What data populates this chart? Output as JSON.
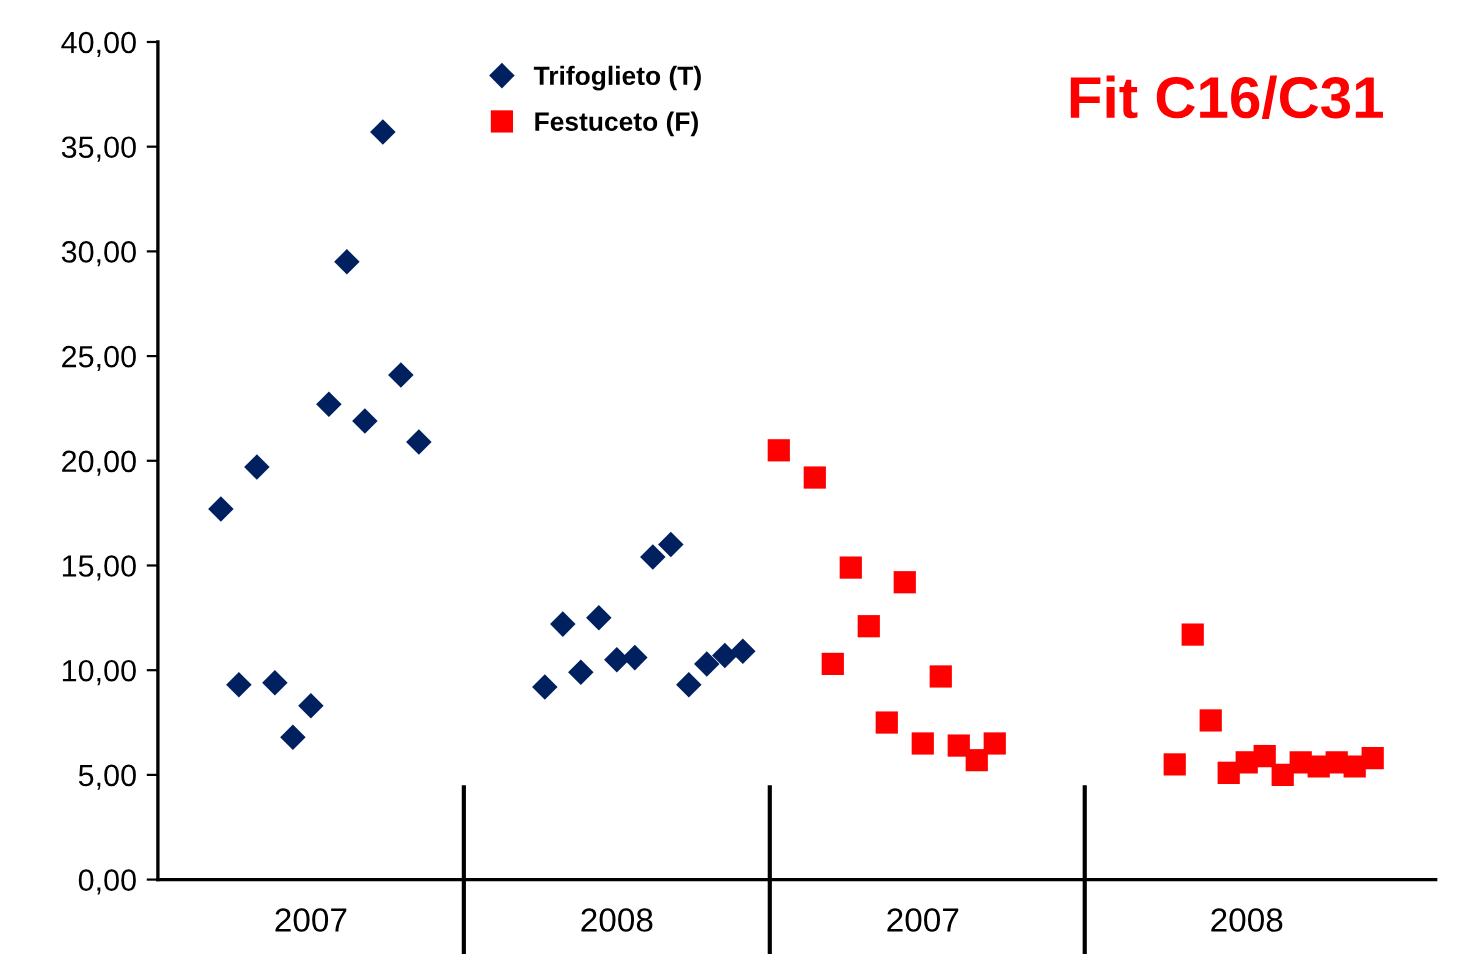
{
  "chart_data": {
    "type": "scatter",
    "title": "Fit C16/C31",
    "legend": "top",
    "grid": false,
    "ylim": [
      0,
      40
    ],
    "categories": [
      null,
      null,
      null,
      null,
      null,
      null,
      null,
      null,
      "2007",
      null,
      null,
      null,
      null,
      null,
      null,
      null,
      null,
      null,
      null,
      null,
      null,
      null,
      null,
      null,
      null,
      "2008",
      null,
      null,
      null,
      null,
      null,
      null,
      null,
      null,
      null,
      null,
      null,
      null,
      null,
      null,
      null,
      null,
      "2007",
      null,
      null,
      null,
      null,
      null,
      null,
      null,
      null,
      null,
      null,
      null,
      null,
      null,
      null,
      null,
      null,
      null,
      "2008",
      null,
      null,
      null,
      null,
      null,
      null,
      null,
      null,
      null,
      null
    ],
    "yticks": [
      {
        "value": 0,
        "label": "0,00"
      },
      {
        "value": 5,
        "label": "5,00"
      },
      {
        "value": 10,
        "label": "10,00"
      },
      {
        "value": 15,
        "label": "15,00"
      },
      {
        "value": 20,
        "label": "20,00"
      },
      {
        "value": 25,
        "label": "25,00"
      },
      {
        "value": 30,
        "label": "30,00"
      },
      {
        "value": 35,
        "label": "35,00"
      },
      {
        "value": 40,
        "label": "40,00"
      }
    ],
    "series": [
      {
        "name": "Trifoglieto (T)",
        "color": "#002060",
        "marker": "diamond",
        "values": [
          null,
          null,
          null,
          17.7,
          9.3,
          19.7,
          9.4,
          6.8,
          8.3,
          22.7,
          29.5,
          21.9,
          35.7,
          24.1,
          20.9,
          null,
          null,
          null,
          null,
          null,
          null,
          9.2,
          12.2,
          9.9,
          12.5,
          10.5,
          10.6,
          15.4,
          16.0,
          9.3,
          10.3,
          10.7,
          10.9,
          null,
          null,
          null,
          null,
          null,
          null,
          null,
          null,
          null,
          null,
          null,
          null,
          null,
          null,
          null,
          null,
          null,
          null,
          null,
          null,
          null,
          null,
          null,
          null,
          null,
          null,
          null,
          null,
          null,
          null,
          null,
          null,
          null,
          null,
          null,
          null,
          null,
          null
        ]
      },
      {
        "name": "Festuceto (F)",
        "color": "#ff0000",
        "marker": "square",
        "values": [
          null,
          null,
          null,
          null,
          null,
          null,
          null,
          null,
          null,
          null,
          null,
          null,
          null,
          null,
          null,
          null,
          null,
          null,
          null,
          null,
          null,
          null,
          null,
          null,
          null,
          null,
          null,
          null,
          null,
          null,
          null,
          null,
          null,
          null,
          20.5,
          null,
          19.2,
          10.3,
          14.9,
          12.1,
          7.5,
          14.2,
          6.5,
          9.7,
          6.4,
          5.7,
          6.5,
          null,
          null,
          null,
          null,
          null,
          null,
          null,
          null,
          null,
          5.5,
          11.7,
          7.6,
          5.1,
          5.6,
          5.9,
          5.0,
          5.6,
          5.4,
          5.6,
          5.4,
          5.8,
          null,
          null,
          null
        ]
      }
    ]
  }
}
